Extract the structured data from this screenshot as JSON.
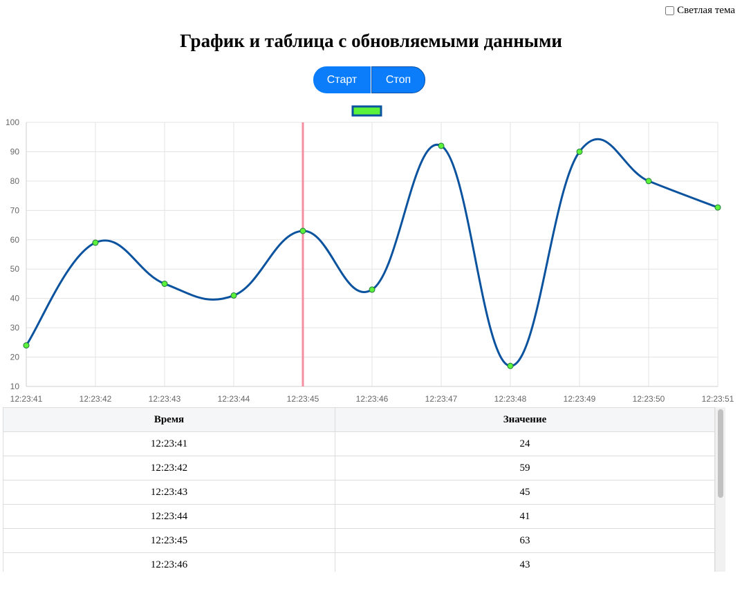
{
  "theme_toggle": {
    "label": "Светлая тема",
    "checked": false
  },
  "title": "График и таблица с обновляемыми данными",
  "controls": {
    "start_label": "Старт",
    "stop_label": "Стоп"
  },
  "colors": {
    "line": "#0b539e",
    "point_fill": "#5cf23c",
    "point_stroke": "#1f7a3a",
    "marker_line": "#f58ea0",
    "button": "#0b7dfa",
    "legend_fill": "#5cf23c",
    "legend_stroke": "#0b539e"
  },
  "chart_data": {
    "type": "line",
    "categories": [
      "12:23:41",
      "12:23:42",
      "12:23:43",
      "12:23:44",
      "12:23:45",
      "12:23:46",
      "12:23:47",
      "12:23:48",
      "12:23:49",
      "12:23:50",
      "12:23:51"
    ],
    "values": [
      24,
      59,
      45,
      41,
      63,
      43,
      92,
      17,
      90,
      80,
      71
    ],
    "ylim": [
      10,
      100
    ],
    "yticks": [
      10,
      20,
      30,
      40,
      50,
      60,
      70,
      80,
      90,
      100
    ],
    "grid": true,
    "legend": "top-center",
    "vertical_marker_at": "12:23:45"
  },
  "table": {
    "headers": {
      "time": "Время",
      "value": "Значение"
    },
    "rows": [
      {
        "time": "12:23:41",
        "value": "24"
      },
      {
        "time": "12:23:42",
        "value": "59"
      },
      {
        "time": "12:23:43",
        "value": "45"
      },
      {
        "time": "12:23:44",
        "value": "41"
      },
      {
        "time": "12:23:45",
        "value": "63"
      },
      {
        "time": "12:23:46",
        "value": "43"
      }
    ]
  }
}
